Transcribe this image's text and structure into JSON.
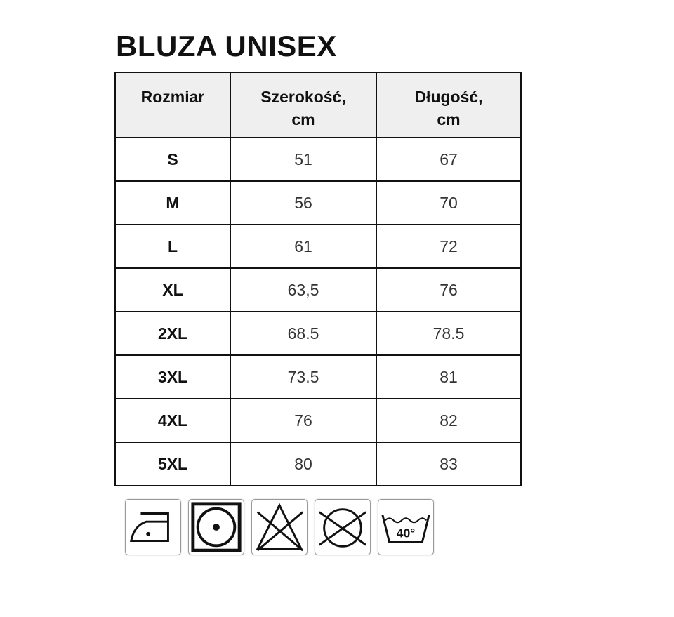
{
  "title": "BLUZA UNISEX",
  "table": {
    "headers": [
      "Rozmiar",
      "Szerokość, cm",
      "Długość, cm"
    ],
    "rows": [
      [
        "S",
        "51",
        "67"
      ],
      [
        "M",
        "56",
        "70"
      ],
      [
        "L",
        "61",
        "72"
      ],
      [
        "XL",
        "63,5",
        "76"
      ],
      [
        "2XL",
        "68.5",
        "78.5"
      ],
      [
        "3XL",
        "73.5",
        "81"
      ],
      [
        "4XL",
        "76",
        "82"
      ],
      [
        "5XL",
        "80",
        "83"
      ]
    ]
  },
  "care_icons": [
    {
      "name": "iron-low-heat-icon"
    },
    {
      "name": "tumble-dry-icon"
    },
    {
      "name": "do-not-bleach-icon"
    },
    {
      "name": "do-not-dry-clean-icon"
    },
    {
      "name": "wash-40-icon",
      "label": "40°"
    }
  ]
}
